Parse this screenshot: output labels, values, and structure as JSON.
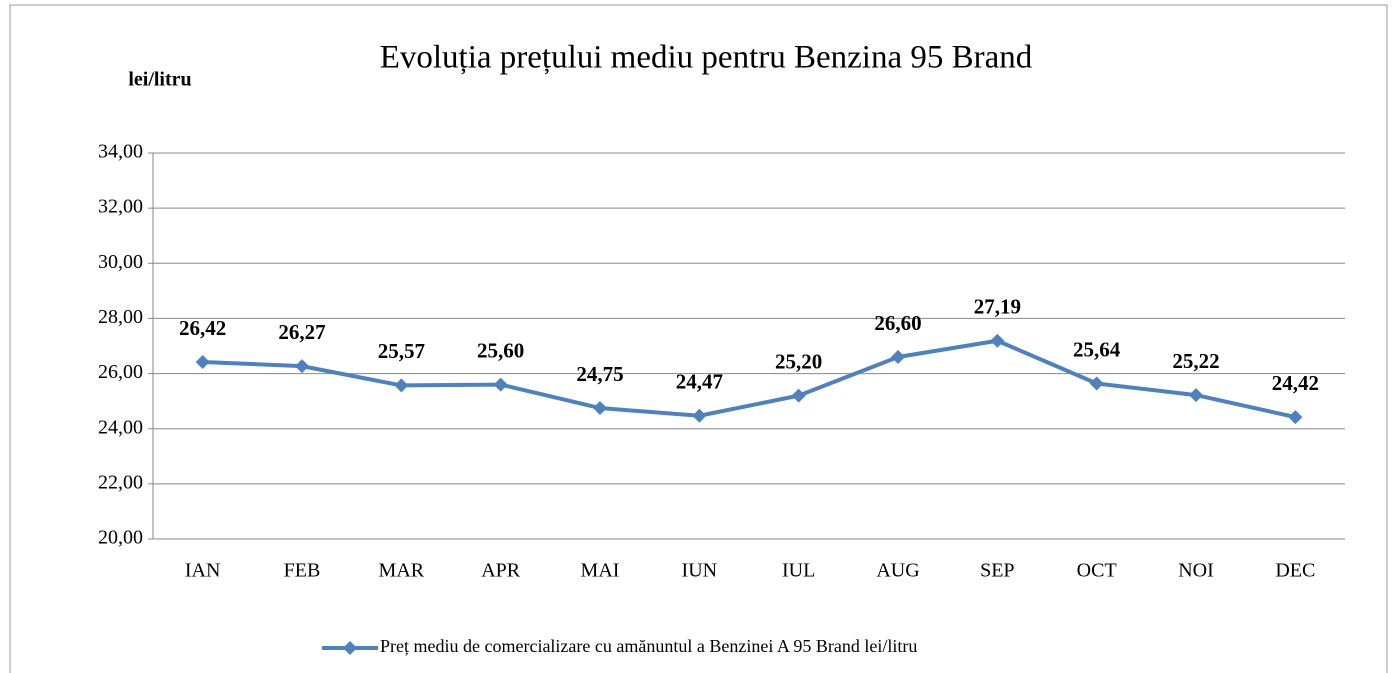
{
  "chart_data": {
    "type": "line",
    "title": "Evoluția prețului mediu pentru Benzina 95 Brand",
    "y_axis_label": "lei/litru",
    "categories": [
      "IAN",
      "FEB",
      "MAR",
      "APR",
      "MAI",
      "IUN",
      "IUL",
      "AUG",
      "SEP",
      "OCT",
      "NOI",
      "DEC"
    ],
    "series": [
      {
        "name": "Preț mediu de comercializare cu amănuntul a Benzinei A 95 Brand lei/litru",
        "color": "#4f81bd",
        "values": [
          26.42,
          26.27,
          25.57,
          25.6,
          24.75,
          24.47,
          25.2,
          26.6,
          27.19,
          25.64,
          25.22,
          24.42
        ],
        "value_labels": [
          "26,42",
          "26,27",
          "25,57",
          "25,60",
          "24,75",
          "24,47",
          "25,20",
          "26,60",
          "27,19",
          "25,64",
          "25,22",
          "24,42"
        ]
      }
    ],
    "ylim": [
      20,
      34
    ],
    "yticks": [
      {
        "value": 20,
        "label": "20,00"
      },
      {
        "value": 22,
        "label": "22,00"
      },
      {
        "value": 24,
        "label": "24,00"
      },
      {
        "value": 26,
        "label": "26,00"
      },
      {
        "value": 28,
        "label": "28,00"
      },
      {
        "value": 30,
        "label": "30,00"
      },
      {
        "value": 32,
        "label": "32,00"
      },
      {
        "value": 34,
        "label": "34,00"
      }
    ],
    "grid": true,
    "legend": "bottom"
  }
}
